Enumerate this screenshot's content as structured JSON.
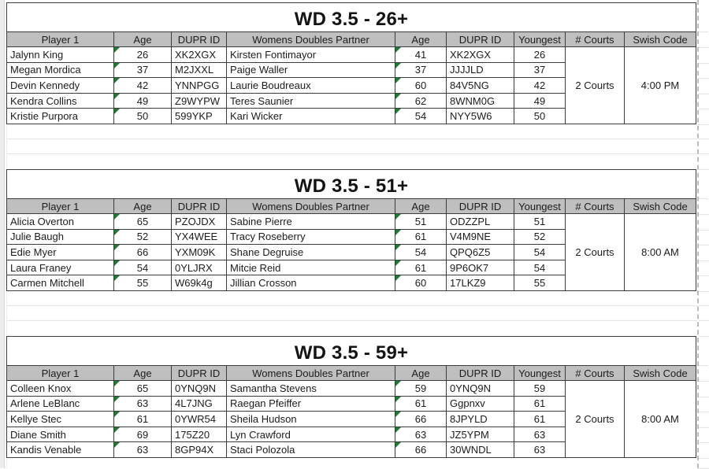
{
  "columns": [
    "Player 1",
    "Age",
    "DUPR ID",
    "Womens Doubles Partner",
    "Age",
    "DUPR ID",
    "Youngest",
    "# Courts",
    "Swish Code"
  ],
  "sections": [
    {
      "title": "WD 3.5 - 26+",
      "rows": [
        [
          "Jalynn King",
          "26",
          "XK2XGX",
          "Kirsten Fontimayor",
          "41",
          "XK2XGX",
          "26"
        ],
        [
          "Megan Mordica",
          "37",
          "M2JXXL",
          "Paige Waller",
          "37",
          "JJJJLD",
          "37"
        ],
        [
          "Devin Kennedy",
          "42",
          "YNNPGG",
          "Laurie Boudreaux",
          "60",
          "84V5NG",
          "42"
        ],
        [
          "Kendra Collins",
          "49",
          "Z9WYPW",
          "Teres Saunier",
          "62",
          "8WNM0G",
          "49"
        ],
        [
          "Kristie Purpora",
          "50",
          "599YKP",
          "Kari Wicker",
          "54",
          "NYY5W6",
          "50"
        ]
      ],
      "courts": "2 Courts",
      "swish_code": "4:00 PM"
    },
    {
      "title": "WD 3.5 - 51+",
      "rows": [
        [
          "Alicia Overton",
          "65",
          "PZOJDX",
          "Sabine Pierre",
          "51",
          "ODZZPL",
          "51"
        ],
        [
          "Julie Baugh",
          "52",
          "YX4WEE",
          "Tracy Roseberry",
          "61",
          "V4M9NE",
          "52"
        ],
        [
          "Edie Myer",
          "66",
          "YXM09K",
          "Shane Degruise",
          "54",
          "QPQ6Z5",
          "54"
        ],
        [
          "Laura Franey",
          "54",
          "0YLJRX",
          "Mitcie Reid",
          "61",
          "9P6OK7",
          "54"
        ],
        [
          "Carmen Mitchell",
          "55",
          "W69k4g",
          "Jillian Crosson",
          "60",
          "17LKZ9",
          "55"
        ]
      ],
      "courts": "2 Courts",
      "swish_code": "8:00 AM"
    },
    {
      "title": "WD 3.5 - 59+",
      "rows": [
        [
          "Colleen Knox",
          "65",
          "0YNQ9N",
          "Samantha Stevens",
          "59",
          "0YNQ9N",
          "59"
        ],
        [
          "Arlene LeBlanc",
          "63",
          "4L7JNG",
          "Raegan Pfeiffer",
          "61",
          "Ggpnxv",
          "61"
        ],
        [
          "Kellye Stec",
          "61",
          "0YWR54",
          "Sheila Hudson",
          "66",
          "8JPYLD",
          "61"
        ],
        [
          "Diane Smith",
          "69",
          "175Z20",
          "Lyn Crawford",
          "63",
          "JZ5YPM",
          "63"
        ],
        [
          "Kandis Venable",
          "63",
          "8GP94X",
          "Staci Polozola",
          "66",
          "30WNDL",
          "63"
        ]
      ],
      "courts": "2 Courts",
      "swish_code": "8:00 AM"
    }
  ],
  "colors": {
    "header_bg": "#bfbfbf",
    "cell_border": "#3c3c3c",
    "faint_grid": "#e4e4e4",
    "error_triangle_green": "#1e7b34",
    "page_break_dash": "#bcbcbc"
  }
}
